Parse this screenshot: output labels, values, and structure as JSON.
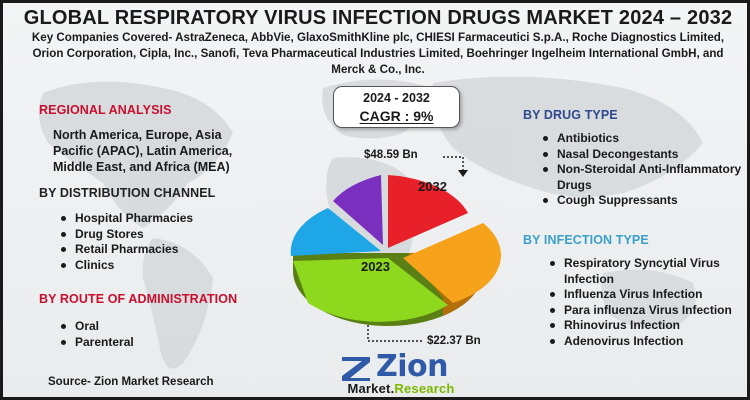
{
  "title": "GLOBAL RESPIRATORY VIRUS INFECTION DRUGS MARKET 2024 – 2032",
  "subtitle": "Key Companies Covered- AstraZeneca, AbbVie, GlaxoSmithKline plc, CHIESI Farmaceutici S.p.A., Roche Diagnostics Limited, Orion Corporation, Cipla, Inc., Sanofi, Teva Pharmaceutical Industries Limited, Boehringer Ingelheim International GmbH, and Merck & Co., Inc.",
  "regional": {
    "heading": "REGIONAL ANALYSIS",
    "text": "North America, Europe, Asia Pacific (APAC), Latin America, Middle East, and Africa (MEA)"
  },
  "distribution": {
    "heading": "BY DISTRIBUTION CHANNEL",
    "items": [
      "Hospital Pharmacies",
      "Drug Stores",
      "Retail Pharmacies",
      "Clinics"
    ]
  },
  "route": {
    "heading": "BY ROUTE OF ADMINISTRATION",
    "items": [
      "Oral",
      "Parenteral"
    ]
  },
  "drug_type": {
    "heading": "BY DRUG TYPE",
    "items": [
      "Antibiotics",
      "Nasal Decongestants",
      "Non-Steroidal Anti-Inflammatory Drugs",
      "Cough Suppressants"
    ]
  },
  "infection_type": {
    "heading": "BY INFECTION TYPE",
    "items": [
      "Respiratory Syncytial Virus Infection",
      "Influenza Virus Infection",
      "Para influenza Virus Infection",
      "Rhinovirus Infection",
      "Adenovirus Infection"
    ]
  },
  "forecast": {
    "years": "2024 - 2032",
    "cagr": "CAGR : 9%"
  },
  "pie": {
    "label_2032": "2032",
    "label_2023": "2023",
    "value_2032": "$48.59 Bn",
    "value_2023": "$22.37 Bn"
  },
  "source": "Source- Zion Market Research",
  "logo": {
    "main": "Zion",
    "sub_left": "Market.",
    "sub_right": "Research"
  },
  "colors": {
    "red_heading": "#c8102e",
    "blue_heading": "#2e4a8c",
    "cyan_heading": "#3aa0c8",
    "slice_red": "#e8202a",
    "slice_orange": "#f7a21b",
    "slice_green": "#8ed81e",
    "slice_blue": "#1fa6e6",
    "slice_purple": "#7b2fbf"
  }
}
